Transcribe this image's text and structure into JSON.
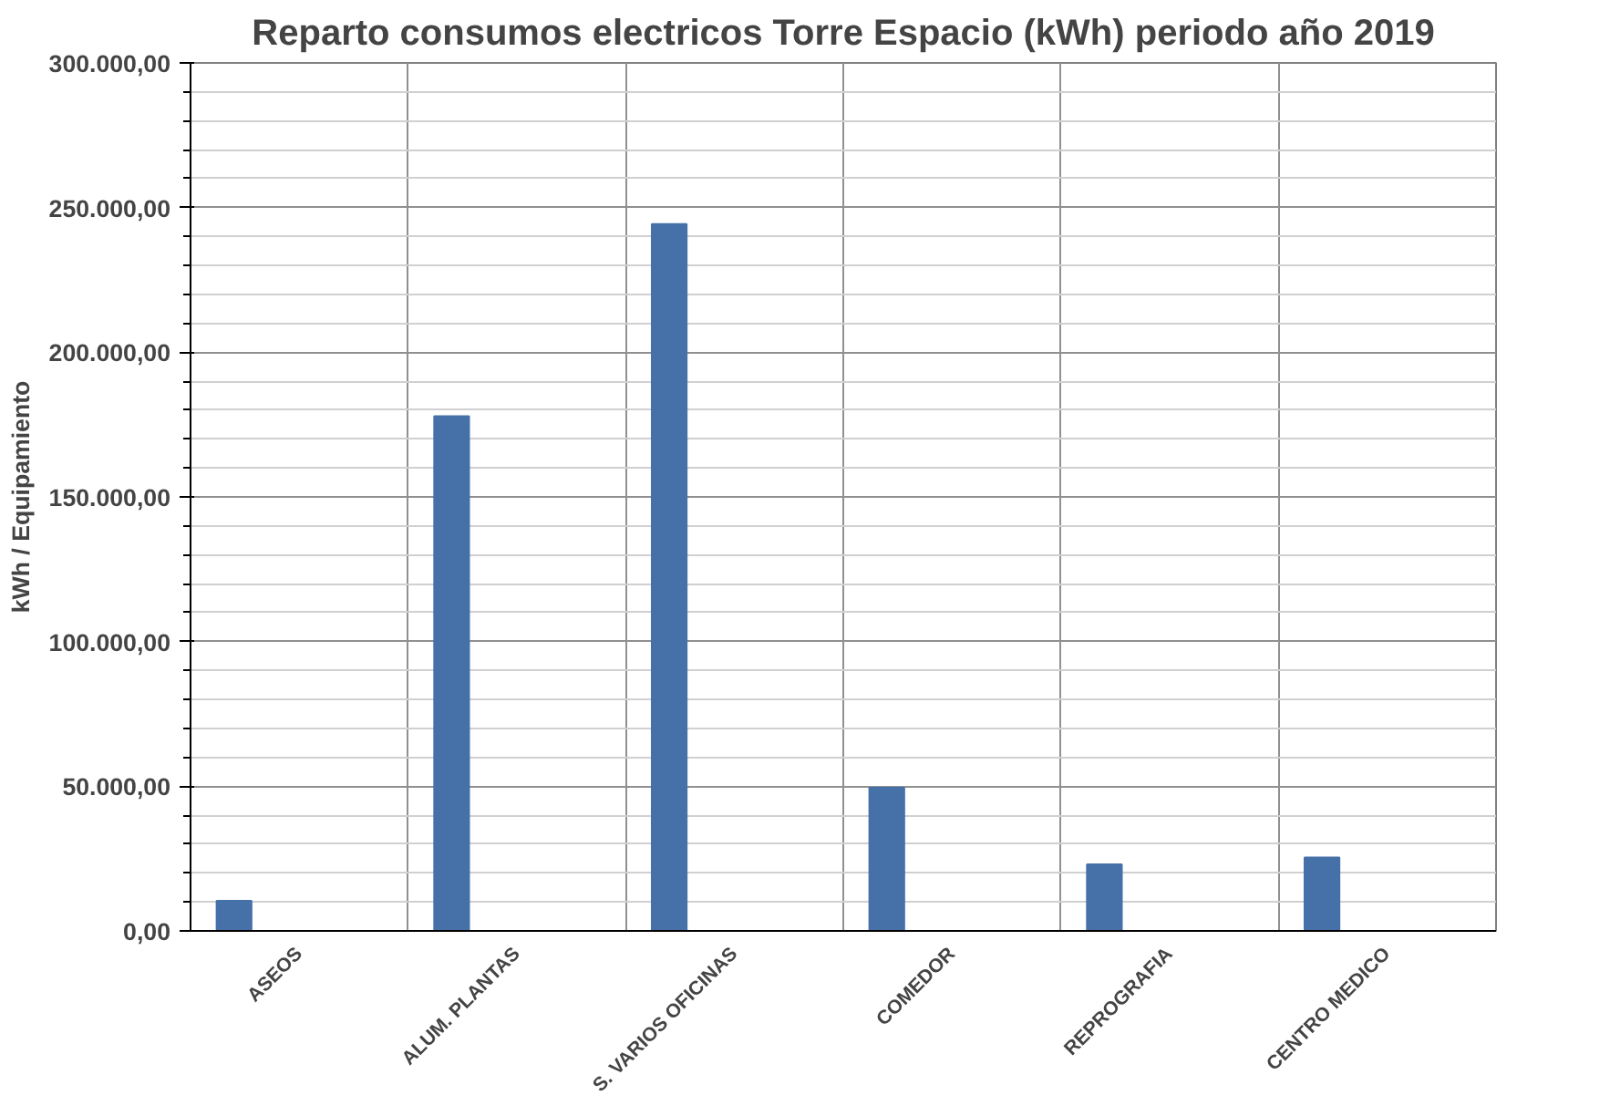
{
  "chart_data": {
    "type": "bar",
    "title": "Reparto consumos electricos Torre Espacio (kWh) periodo año 2019",
    "ylabel": "kWh / Equipamiento",
    "categories": [
      "ASEOS",
      "ALUM. PLANTAS",
      "S. VARIOS OFICINAS",
      "COMEDOR",
      "REPROGRAFIA",
      "CENTRO MEDICO"
    ],
    "series": [
      {
        "color": "#4670a8",
        "values": [
          10400,
          177900,
          244300,
          49500,
          23000,
          25400
        ]
      }
    ],
    "ylim": [
      0,
      300000
    ],
    "yticks": [
      {
        "value": 0,
        "label": "0,00"
      },
      {
        "value": 50000,
        "label": "50.000,00"
      },
      {
        "value": 100000,
        "label": "100.000,00"
      },
      {
        "value": 150000,
        "label": "150.000,00"
      },
      {
        "value": 200000,
        "label": "200.000,00"
      },
      {
        "value": 250000,
        "label": "250.000,00"
      },
      {
        "value": 300000,
        "label": "300.000,00"
      }
    ],
    "grid": true
  }
}
